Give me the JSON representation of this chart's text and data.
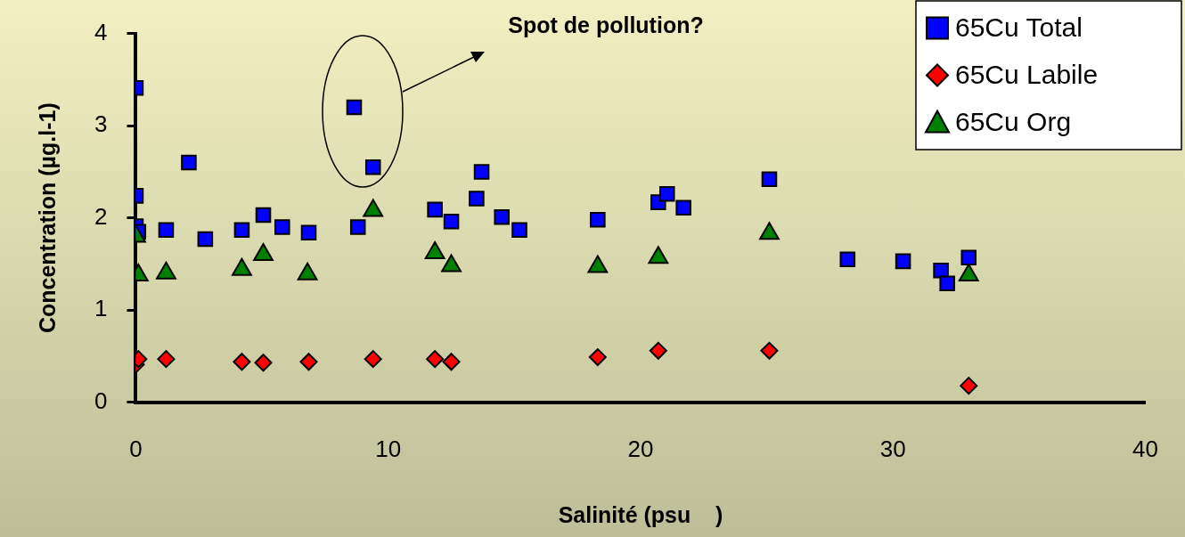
{
  "chart_data": {
    "type": "scatter",
    "xlabel": "Salinité (psu    )",
    "ylabel": "Concentration (µg.l-1)",
    "annotations": [
      "Spot de pollution?"
    ],
    "xlim": [
      0,
      40
    ],
    "xticks": [
      0,
      10,
      20,
      30,
      40
    ],
    "ylim": [
      0,
      4
    ],
    "yticks": [
      0,
      1,
      2,
      3,
      4
    ],
    "grid": false,
    "legend": "top right",
    "series": [
      {
        "name": "65Cu Total",
        "color": "#0000ff",
        "marker": "square",
        "x": [
          0,
          0,
          0,
          0.1,
          1.2,
          2.1,
          2.75,
          4.2,
          5.05,
          5.8,
          6.85,
          8.8,
          8.65,
          9.4,
          11.85,
          12.5,
          13.7,
          13.5,
          14.5,
          15.2,
          18.3,
          20.7,
          21.05,
          21.7,
          25.1,
          28.2,
          30.4,
          31.9,
          32.15,
          33
        ],
        "values": [
          3.41,
          2.24,
          1.91,
          1.85,
          1.87,
          2.6,
          1.77,
          1.87,
          2.03,
          1.9,
          1.84,
          1.9,
          3.2,
          2.55,
          2.09,
          1.96,
          2.5,
          2.21,
          2.01,
          1.87,
          1.98,
          2.17,
          2.26,
          2.11,
          2.42,
          1.55,
          1.53,
          1.43,
          1.29,
          1.57
        ]
      },
      {
        "name": "65Cu Labile",
        "color": "#ff0000",
        "marker": "diamond",
        "x": [
          0,
          0.1,
          1.2,
          4.2,
          5.05,
          6.85,
          9.4,
          11.85,
          12.5,
          18.3,
          20.7,
          25.1,
          33
        ],
        "values": [
          0.41,
          0.47,
          0.47,
          0.44,
          0.43,
          0.44,
          0.47,
          0.47,
          0.44,
          0.49,
          0.56,
          0.56,
          0.18
        ]
      },
      {
        "name": "65Cu Org",
        "color": "#008000",
        "marker": "triangle",
        "x": [
          0,
          0.1,
          1.2,
          4.2,
          5.05,
          6.8,
          9.4,
          11.85,
          12.5,
          18.3,
          20.7,
          25.1,
          33
        ],
        "values": [
          1.8,
          1.38,
          1.4,
          1.44,
          1.6,
          1.39,
          2.08,
          1.62,
          1.48,
          1.47,
          1.57,
          1.83,
          1.38
        ]
      }
    ]
  }
}
